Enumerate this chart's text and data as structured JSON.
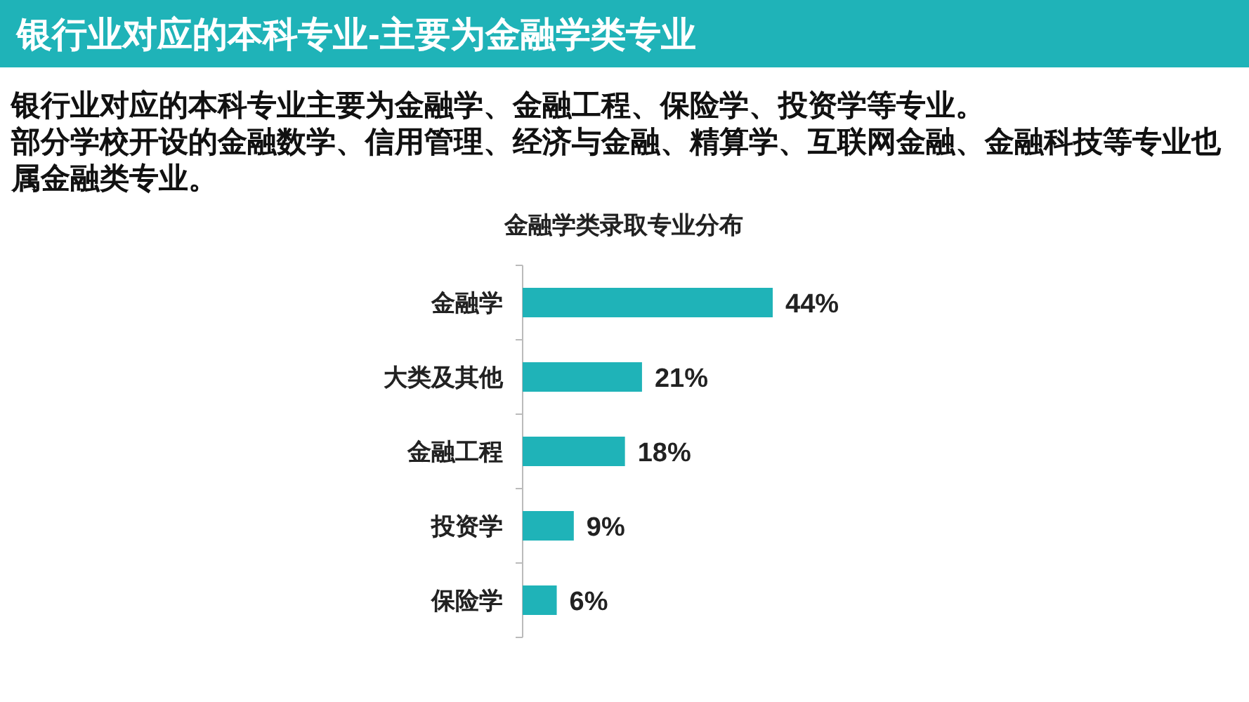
{
  "chart_data": {
    "type": "bar",
    "orientation": "horizontal",
    "title": "银行业对应的本科专业-主要为金融学类专业",
    "subtitle": "金融学类录取专业分布",
    "annotations": [
      "银行业对应的本科专业主要为金融学、金融工程、保险学、投资学等专业。",
      "部分学校开设的金融数学、信用管理、经济与金融、精算学、互联网金融、金融科技等专业也属金融类专业。"
    ],
    "categories": [
      "金融学",
      "大类及其他",
      "金融工程",
      "投资学",
      "保险学"
    ],
    "values": [
      44,
      21,
      18,
      9,
      6
    ],
    "value_labels": [
      "44%",
      "21%",
      "18%",
      "9%",
      "6%"
    ],
    "color": "#1fb3b8"
  }
}
